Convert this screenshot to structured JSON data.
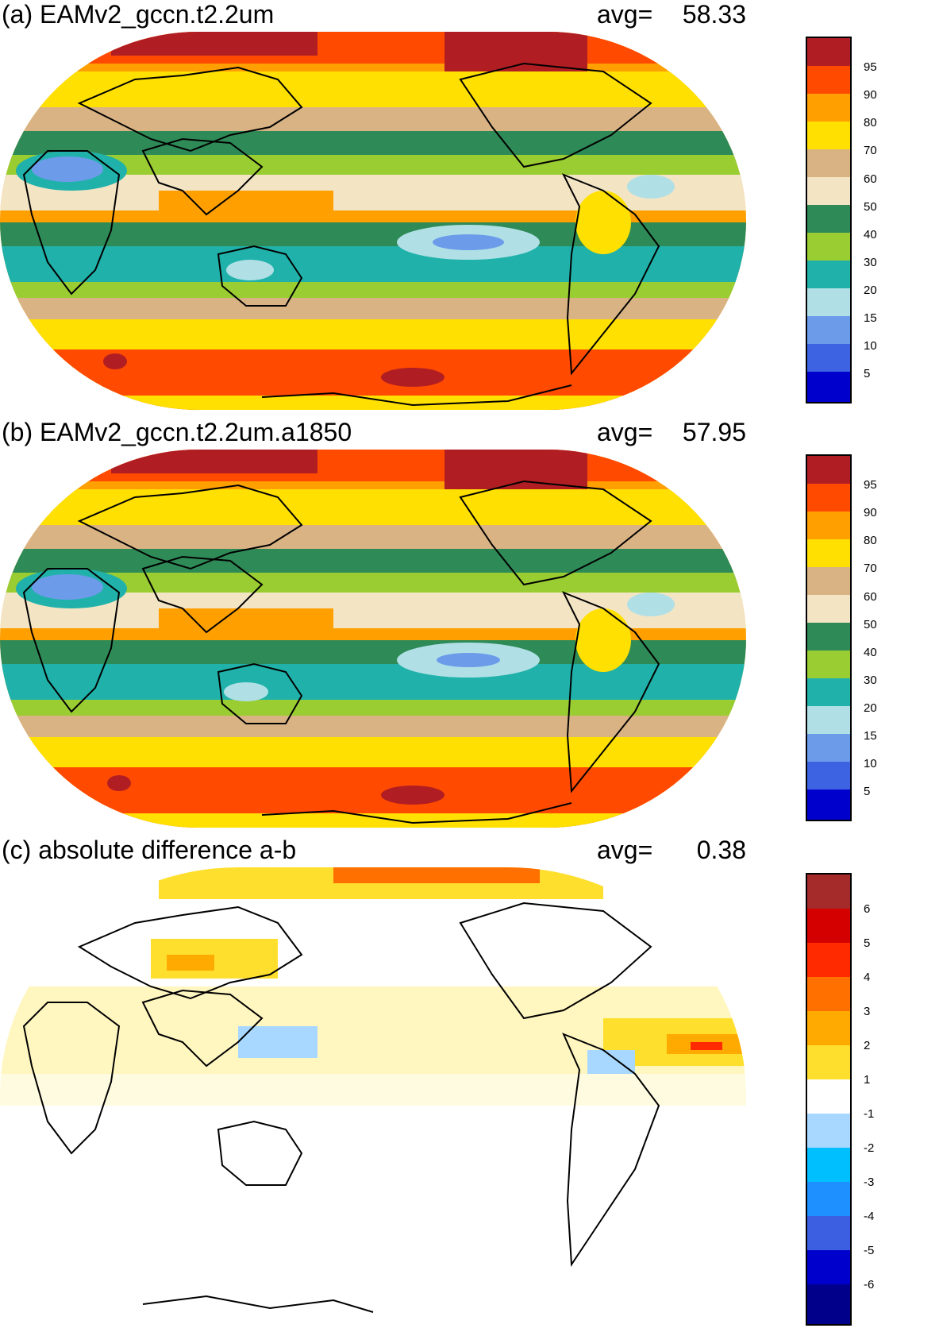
{
  "panels": [
    {
      "id": "a",
      "title": "(a) EAMv2_gccn.t2.2um",
      "avg_label": "avg=",
      "avg_value": "58.33",
      "colorbar": {
        "labels": [
          "95",
          "90",
          "80",
          "70",
          "60",
          "50",
          "40",
          "30",
          "20",
          "15",
          "10",
          "5"
        ],
        "colors": [
          "#b01e23",
          "#ff4a00",
          "#ff9f00",
          "#ffe000",
          "#d9b384",
          "#f3e4c4",
          "#2e8b57",
          "#9acd32",
          "#20b2aa",
          "#b0e0e6",
          "#6c9bea",
          "#3d63e2",
          "#0000cd"
        ]
      }
    },
    {
      "id": "b",
      "title": "(b) EAMv2_gccn.t2.2um.a1850",
      "avg_label": "avg=",
      "avg_value": "57.95",
      "colorbar": {
        "labels": [
          "95",
          "90",
          "80",
          "70",
          "60",
          "50",
          "40",
          "30",
          "20",
          "15",
          "10",
          "5"
        ],
        "colors": [
          "#b01e23",
          "#ff4a00",
          "#ff9f00",
          "#ffe000",
          "#d9b384",
          "#f3e4c4",
          "#2e8b57",
          "#9acd32",
          "#20b2aa",
          "#b0e0e6",
          "#6c9bea",
          "#3d63e2",
          "#0000cd"
        ]
      }
    },
    {
      "id": "c",
      "title": "(c) absolute difference a-b",
      "avg_label": "avg=",
      "avg_value": "0.38",
      "colorbar": {
        "labels": [
          "6",
          "5",
          "4",
          "3",
          "2",
          "1",
          "-1",
          "-2",
          "-3",
          "-4",
          "-5",
          "-6"
        ],
        "colors": [
          "#a52a2a",
          "#d40000",
          "#ff2a00",
          "#ff7000",
          "#ffaa00",
          "#ffdf2e",
          "#ffffff",
          "#a8d8ff",
          "#00bfff",
          "#1e90ff",
          "#3c5ee0",
          "#0000cd",
          "#00008b"
        ]
      }
    }
  ]
}
